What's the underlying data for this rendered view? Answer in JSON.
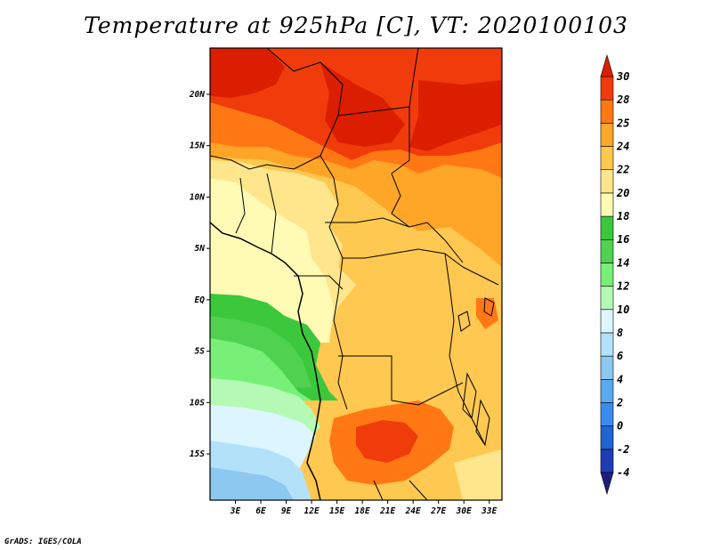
{
  "title": "Temperature at 925hPa [C], VT: 2020100103",
  "credit": "GrADS: IGES/COLA",
  "map": {
    "lon_range": [
      0,
      34.5
    ],
    "lat_range": [
      -19.5,
      24.5
    ],
    "lat_ticks": [
      {
        "value": 20,
        "label": "20N"
      },
      {
        "value": 15,
        "label": "15N"
      },
      {
        "value": 10,
        "label": "10N"
      },
      {
        "value": 5,
        "label": "5N"
      },
      {
        "value": 0,
        "label": "EQ"
      },
      {
        "value": -5,
        "label": "5S"
      },
      {
        "value": -10,
        "label": "10S"
      },
      {
        "value": -15,
        "label": "15S"
      }
    ],
    "lon_ticks": [
      {
        "value": 3,
        "label": "3E"
      },
      {
        "value": 6,
        "label": "6E"
      },
      {
        "value": 9,
        "label": "9E"
      },
      {
        "value": 12,
        "label": "12E"
      },
      {
        "value": 15,
        "label": "15E"
      },
      {
        "value": 18,
        "label": "18E"
      },
      {
        "value": 21,
        "label": "21E"
      },
      {
        "value": 24,
        "label": "24E"
      },
      {
        "value": 27,
        "label": "27E"
      },
      {
        "value": 30,
        "label": "30E"
      },
      {
        "value": 33,
        "label": "33E"
      }
    ]
  },
  "colorbar": {
    "levels": [
      "-4",
      "-2",
      "0",
      "2",
      "4",
      "6",
      "8",
      "10",
      "12",
      "14",
      "16",
      "18",
      "20",
      "22",
      "24",
      "25",
      "28",
      "30"
    ],
    "colors": [
      "#1e1e80",
      "#1e3cb4",
      "#1e64d2",
      "#3c8cf0",
      "#5aaaf0",
      "#8cc8f0",
      "#b4e1fa",
      "#dcf5ff",
      "#b4fab4",
      "#78f078",
      "#50d250",
      "#3cc83c",
      "#fffab4",
      "#ffe68c",
      "#ffc850",
      "#ffa528",
      "#ff7814",
      "#f03c0a",
      "#dc1e00"
    ]
  }
}
